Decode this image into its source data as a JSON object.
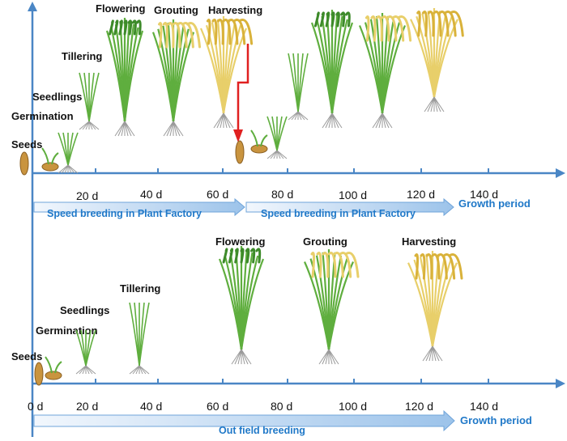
{
  "colors": {
    "axis": "#4a86c5",
    "band_fill_light": "#f2f7fd",
    "band_fill_dark": "#9cc3ea",
    "band_text": "#1f78c8",
    "leaf_green": "#5fae3e",
    "leaf_dark": "#3d8a2a",
    "ripe_yellow": "#d9b23a",
    "ripe_light": "#e8cf6a",
    "root": "#9a9a9a",
    "seed": "#c9943f",
    "red_arrow": "#e02020"
  },
  "top_panel": {
    "stages": [
      "Seeds",
      "Germination",
      "Seedlings",
      "Tillering",
      "Flowering",
      "Grouting",
      "Harvesting"
    ],
    "ticks": [
      "20 d",
      "40 d",
      "60 d",
      "80 d",
      "100 d",
      "120 d",
      "140 d"
    ],
    "period_label": "Growth period",
    "band_1_label": "Speed breeding in Plant Factory",
    "band_2_label": "Speed breeding in Plant Factory"
  },
  "bottom_panel": {
    "stages": [
      "Seeds",
      "Germination",
      "Seedlings",
      "Tillering",
      "Flowering",
      "Grouting",
      "Harvesting"
    ],
    "ticks": [
      "0 d",
      "20 d",
      "40 d",
      "60 d",
      "80 d",
      "100 d",
      "120 d",
      "140 d"
    ],
    "period_label": "Growth period",
    "band_label": "Out field breeding"
  }
}
